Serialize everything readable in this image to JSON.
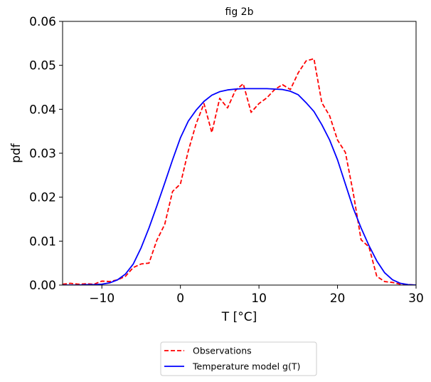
{
  "chart_data": {
    "type": "line",
    "title": "fig 2b",
    "xlabel": "T [°C]",
    "ylabel": "pdf",
    "xlim": [
      -15,
      30
    ],
    "ylim": [
      0,
      0.06
    ],
    "xticks": [
      -10,
      0,
      10,
      20,
      30
    ],
    "xtick_labels": [
      "−10",
      "0",
      "10",
      "20",
      "30"
    ],
    "yticks": [
      0,
      0.01,
      0.02,
      0.03,
      0.04,
      0.05,
      0.06
    ],
    "ytick_labels": [
      "0.00",
      "0.01",
      "0.02",
      "0.03",
      "0.04",
      "0.05",
      "0.06"
    ],
    "grid": false,
    "legend_position": "below",
    "series": [
      {
        "name": "Observations",
        "color": "#ff0000",
        "dash": "dashed",
        "x": [
          -15,
          -14,
          -13,
          -12,
          -11,
          -10,
          -9,
          -8,
          -7,
          -6,
          -5,
          -4,
          -3,
          -2,
          -1,
          0,
          1,
          2,
          3,
          4,
          5,
          6,
          7,
          8,
          9,
          10,
          11,
          12,
          13,
          14,
          15,
          16,
          17,
          18,
          19,
          20,
          21,
          22,
          23,
          24,
          25,
          26,
          27,
          28,
          29,
          30
        ],
        "y": [
          0.0002,
          0.0004,
          0.0002,
          0.0003,
          0.0002,
          0.0009,
          0.0008,
          0.0012,
          0.002,
          0.004,
          0.0048,
          0.005,
          0.0102,
          0.0138,
          0.0213,
          0.023,
          0.0305,
          0.0367,
          0.0413,
          0.0347,
          0.0425,
          0.0403,
          0.0443,
          0.0458,
          0.0393,
          0.0413,
          0.0426,
          0.0445,
          0.0456,
          0.0445,
          0.0483,
          0.051,
          0.0515,
          0.0415,
          0.0385,
          0.033,
          0.0302,
          0.021,
          0.0103,
          0.0087,
          0.002,
          0.0008,
          0.0006,
          0.0002,
          0.0001,
          0.0
        ]
      },
      {
        "name": "Temperature model g(T)",
        "color": "#0000ff",
        "dash": "solid",
        "x": [
          -15,
          -14,
          -13,
          -12,
          -11,
          -10,
          -9,
          -8,
          -7,
          -6,
          -5,
          -4,
          -3,
          -2,
          -1,
          0,
          1,
          2,
          3,
          4,
          5,
          6,
          7,
          8,
          9,
          10,
          11,
          12,
          13,
          14,
          15,
          16,
          17,
          18,
          19,
          20,
          21,
          22,
          23,
          24,
          25,
          26,
          27,
          28,
          29,
          30
        ],
        "y": [
          0.0,
          0.0,
          0.0,
          0.0001,
          0.0001,
          0.0002,
          0.0005,
          0.0012,
          0.0025,
          0.0048,
          0.0085,
          0.013,
          0.018,
          0.0232,
          0.0285,
          0.0335,
          0.0373,
          0.0398,
          0.0418,
          0.0432,
          0.044,
          0.0444,
          0.0446,
          0.0447,
          0.0447,
          0.0447,
          0.0447,
          0.0446,
          0.0445,
          0.0441,
          0.0433,
          0.0415,
          0.0395,
          0.0365,
          0.033,
          0.0285,
          0.023,
          0.0175,
          0.013,
          0.009,
          0.0055,
          0.0028,
          0.0012,
          0.0004,
          0.0001,
          0.0
        ]
      }
    ]
  }
}
